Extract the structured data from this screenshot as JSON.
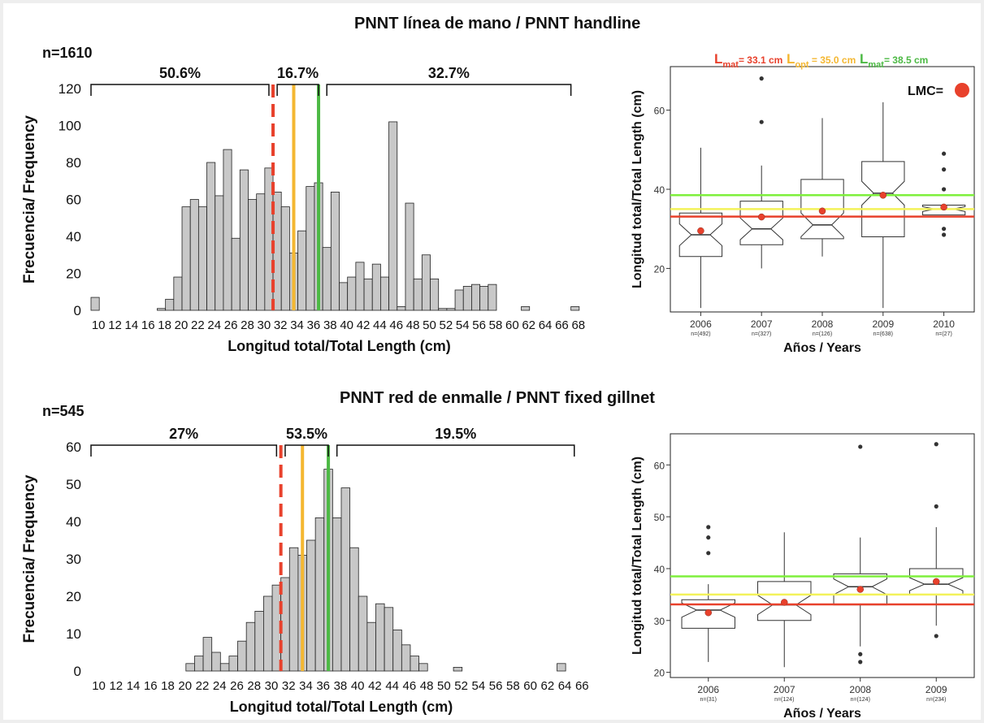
{
  "colors": {
    "bar": "#c8c8c8",
    "bar_stroke": "#222222",
    "red": "#e8412c",
    "orange": "#f4b731",
    "green": "#4cb944",
    "box_green": "#7ef03c",
    "box_yellow": "#f3f25a",
    "box_red": "#e8412c",
    "lmc_dot": "#e8412c"
  },
  "chart_data": [
    {
      "type": "bar",
      "title": "PNNT línea de mano / PNNT handline",
      "n_label": "n=1610",
      "xlabel": "Longitud total/Total Length (cm)",
      "ylabel": "Frecuencia/ Frequency",
      "ylim": [
        0,
        120
      ],
      "yticks": [
        0,
        20,
        40,
        60,
        80,
        100,
        120
      ],
      "xtick_labels": [
        "10",
        "12",
        "14",
        "16",
        "18",
        "20",
        "22",
        "24",
        "26",
        "28",
        "30",
        "32",
        "34",
        "36",
        "38",
        "40",
        "42",
        "44",
        "46",
        "48",
        "50",
        "52",
        "54",
        "56",
        "58",
        "60",
        "62",
        "64",
        "66",
        "68"
      ],
      "bin_start": 10,
      "bin_width": 1,
      "values": [
        7,
        0,
        0,
        0,
        0,
        0,
        0,
        0,
        1,
        6,
        18,
        56,
        60,
        56,
        80,
        62,
        87,
        39,
        76,
        60,
        63,
        77,
        64,
        56,
        31,
        43,
        67,
        69,
        34,
        64,
        15,
        18,
        26,
        17,
        25,
        18,
        102,
        2,
        58,
        17,
        30,
        17,
        1,
        1,
        11,
        13,
        14,
        13,
        14,
        0,
        0,
        0,
        2,
        0,
        0,
        0,
        0,
        0,
        2
      ],
      "vlines": [
        {
          "x": 32,
          "style": "dashed",
          "color": "red"
        },
        {
          "x": 34.5,
          "style": "solid",
          "color": "orange"
        },
        {
          "x": 37.5,
          "style": "solid",
          "color": "green"
        }
      ],
      "brackets": [
        {
          "from": 10,
          "to": 31.5,
          "label": "50.6%"
        },
        {
          "from": 32.5,
          "to": 37.5,
          "label": "16.7%"
        },
        {
          "from": 38.5,
          "to": 68,
          "label": "32.7%"
        }
      ]
    },
    {
      "type": "box",
      "ylabel": "Longitud total/Total Length (cm)",
      "xlabel": "Años / Years",
      "ylim": [
        9,
        71
      ],
      "yticks": [
        20,
        40,
        60
      ],
      "categories": [
        "2006",
        "2007",
        "2008",
        "2009",
        "2010"
      ],
      "n_labels": [
        "n=(492)",
        "n=(327)",
        "n=(126)",
        "n=(638)",
        "n=(27)"
      ],
      "boxes": [
        {
          "whislo": 10,
          "q1": 23,
          "med": 28.5,
          "q3": 34,
          "whishi": 50.5,
          "mean": 29.5,
          "fliers": []
        },
        {
          "whislo": 20,
          "q1": 26,
          "med": 30,
          "q3": 37,
          "whishi": 46,
          "mean": 33,
          "fliers": [
            57,
            68
          ]
        },
        {
          "whislo": 23,
          "q1": 27.5,
          "med": 31,
          "q3": 42.5,
          "whishi": 58,
          "mean": 34.5,
          "fliers": []
        },
        {
          "whislo": 10,
          "q1": 28,
          "med": 39,
          "q3": 47,
          "whishi": 62,
          "mean": 38.5,
          "fliers": []
        },
        {
          "whislo": 33.5,
          "q1": 33.5,
          "med": 35,
          "q3": 36,
          "whishi": 36,
          "mean": 35.5,
          "fliers": [
            28.5,
            30,
            40,
            45,
            49
          ]
        }
      ],
      "hlines": [
        {
          "y": 38.5,
          "color": "green"
        },
        {
          "y": 35,
          "color": "yellow"
        },
        {
          "y": 33.1,
          "color": "red"
        }
      ],
      "legend": {
        "lmat1": "L",
        "lmat1_sub": "mat",
        "lmat1_val": "= 33.1 cm",
        "lopt": "L",
        "lopt_sub": "opt",
        "lopt_val": " = 35.0 cm",
        "lmat2": "L",
        "lmat2_sub": "mat",
        "lmat2_val": "= 38.5 cm",
        "lmc": "LMC="
      }
    },
    {
      "type": "bar",
      "title": "PNNT red de enmalle / PNNT fixed gillnet",
      "n_label": "n=545",
      "xlabel": "Longitud total/Total Length (cm)",
      "ylabel": "Frecuencia/ Frequency",
      "ylim": [
        0,
        60
      ],
      "yticks": [
        0,
        10,
        20,
        30,
        40,
        50,
        60
      ],
      "xtick_labels": [
        "10",
        "12",
        "14",
        "16",
        "18",
        "20",
        "22",
        "24",
        "26",
        "28",
        "30",
        "32",
        "34",
        "36",
        "38",
        "40",
        "42",
        "44",
        "46",
        "48",
        "50",
        "52",
        "54",
        "56",
        "58",
        "60",
        "62",
        "64",
        "66"
      ],
      "bin_start": 10,
      "bin_width": 1,
      "values": [
        0,
        0,
        0,
        0,
        0,
        0,
        0,
        0,
        0,
        0,
        0,
        2,
        4,
        9,
        5,
        2,
        4,
        8,
        13,
        16,
        20,
        23,
        25,
        33,
        31,
        35,
        41,
        54,
        41,
        49,
        33,
        20,
        13,
        18,
        17,
        11,
        7,
        4,
        2,
        0,
        0,
        0,
        1,
        0,
        0,
        0,
        0,
        0,
        0,
        0,
        0,
        0,
        0,
        0,
        2
      ],
      "vlines": [
        {
          "x": 32,
          "style": "dashed",
          "color": "red"
        },
        {
          "x": 34.5,
          "style": "solid",
          "color": "orange"
        },
        {
          "x": 37.5,
          "style": "solid",
          "color": "green"
        }
      ],
      "brackets": [
        {
          "from": 10,
          "to": 31.5,
          "label": "27%"
        },
        {
          "from": 32.5,
          "to": 37.5,
          "label": "53.5%"
        },
        {
          "from": 38.5,
          "to": 66,
          "label": "19.5%"
        }
      ]
    },
    {
      "type": "box",
      "ylabel": "Longitud total/Total Length (cm)",
      "xlabel": "Años / Years",
      "ylim": [
        19,
        66
      ],
      "yticks": [
        20,
        30,
        40,
        50,
        60
      ],
      "categories": [
        "2006",
        "2007",
        "2008",
        "2009"
      ],
      "n_labels": [
        "n=(31)",
        "n=(124)",
        "n=(124)",
        "n=(234)"
      ],
      "boxes": [
        {
          "whislo": 22,
          "q1": 28.5,
          "med": 32,
          "q3": 34,
          "whishi": 37,
          "mean": 31.5,
          "fliers": [
            43,
            46,
            48
          ]
        },
        {
          "whislo": 21,
          "q1": 30,
          "med": 33,
          "q3": 37.5,
          "whishi": 47,
          "mean": 33.5,
          "fliers": []
        },
        {
          "whislo": 25,
          "q1": 33,
          "med": 36.5,
          "q3": 39,
          "whishi": 46,
          "mean": 36,
          "fliers": [
            22,
            23.5,
            63.5
          ]
        },
        {
          "whislo": 29,
          "q1": 35,
          "med": 37,
          "q3": 40,
          "whishi": 48,
          "mean": 37.5,
          "fliers": [
            27,
            52,
            64
          ]
        }
      ],
      "hlines": [
        {
          "y": 38.5,
          "color": "green"
        },
        {
          "y": 35,
          "color": "yellow"
        },
        {
          "y": 33.1,
          "color": "red"
        }
      ]
    }
  ]
}
